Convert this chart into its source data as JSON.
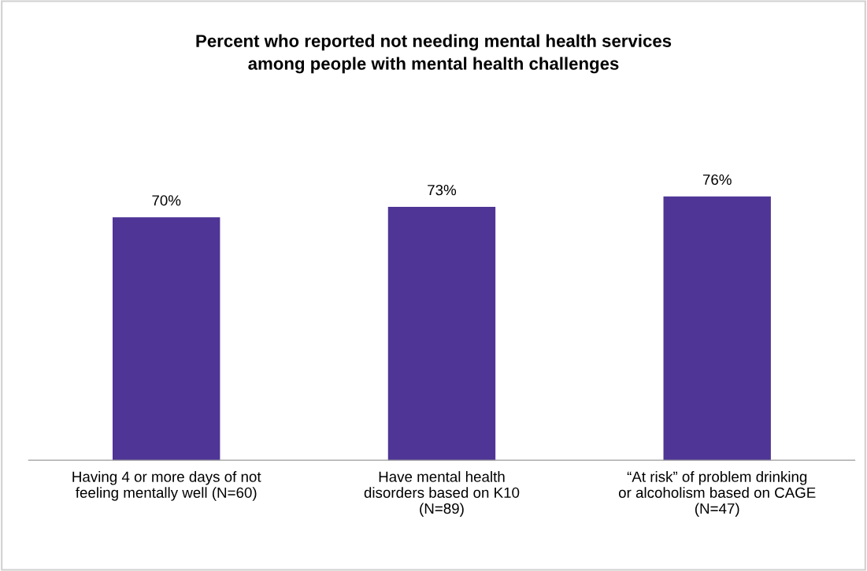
{
  "chart_data": {
    "type": "bar",
    "title": "Percent who reported not needing mental health services\namong people with mental health challenges",
    "categories": [
      "Having 4 or more days of not\nfeeling mentally well (N=60)",
      "Have mental health\ndisorders based on K10\n(N=89)",
      "“At risk” of problem drinking\nor alcoholism based on CAGE\n(N=47)"
    ],
    "values": [
      70,
      73,
      76
    ],
    "value_labels": [
      "70%",
      "73%",
      "76%"
    ],
    "color": "#4f3596",
    "grid": false,
    "legend": false
  }
}
